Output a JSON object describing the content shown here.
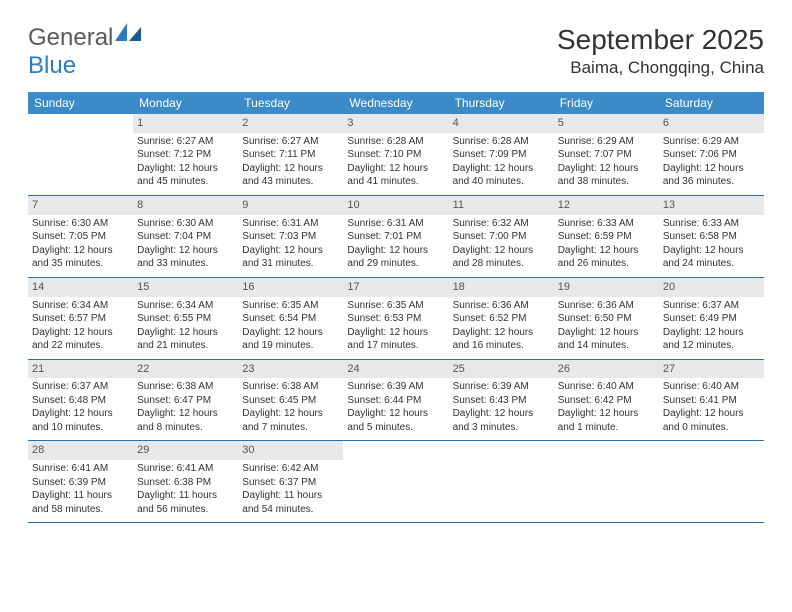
{
  "logo": {
    "text1": "General",
    "text2": "Blue"
  },
  "title": "September 2025",
  "location": "Baima, Chongqing, China",
  "colors": {
    "header_bg": "#3b8bc8",
    "header_text": "#ffffff",
    "daynum_bg": "#e8e8e8",
    "row_border": "#2d6fa8",
    "logo_gray": "#5a5a5a",
    "logo_blue": "#2d7cc0"
  },
  "day_names": [
    "Sunday",
    "Monday",
    "Tuesday",
    "Wednesday",
    "Thursday",
    "Friday",
    "Saturday"
  ],
  "weeks": [
    [
      {
        "empty": true
      },
      {
        "num": "1",
        "sunrise": "Sunrise: 6:27 AM",
        "sunset": "Sunset: 7:12 PM",
        "daylight": "Daylight: 12 hours and 45 minutes."
      },
      {
        "num": "2",
        "sunrise": "Sunrise: 6:27 AM",
        "sunset": "Sunset: 7:11 PM",
        "daylight": "Daylight: 12 hours and 43 minutes."
      },
      {
        "num": "3",
        "sunrise": "Sunrise: 6:28 AM",
        "sunset": "Sunset: 7:10 PM",
        "daylight": "Daylight: 12 hours and 41 minutes."
      },
      {
        "num": "4",
        "sunrise": "Sunrise: 6:28 AM",
        "sunset": "Sunset: 7:09 PM",
        "daylight": "Daylight: 12 hours and 40 minutes."
      },
      {
        "num": "5",
        "sunrise": "Sunrise: 6:29 AM",
        "sunset": "Sunset: 7:07 PM",
        "daylight": "Daylight: 12 hours and 38 minutes."
      },
      {
        "num": "6",
        "sunrise": "Sunrise: 6:29 AM",
        "sunset": "Sunset: 7:06 PM",
        "daylight": "Daylight: 12 hours and 36 minutes."
      }
    ],
    [
      {
        "num": "7",
        "sunrise": "Sunrise: 6:30 AM",
        "sunset": "Sunset: 7:05 PM",
        "daylight": "Daylight: 12 hours and 35 minutes."
      },
      {
        "num": "8",
        "sunrise": "Sunrise: 6:30 AM",
        "sunset": "Sunset: 7:04 PM",
        "daylight": "Daylight: 12 hours and 33 minutes."
      },
      {
        "num": "9",
        "sunrise": "Sunrise: 6:31 AM",
        "sunset": "Sunset: 7:03 PM",
        "daylight": "Daylight: 12 hours and 31 minutes."
      },
      {
        "num": "10",
        "sunrise": "Sunrise: 6:31 AM",
        "sunset": "Sunset: 7:01 PM",
        "daylight": "Daylight: 12 hours and 29 minutes."
      },
      {
        "num": "11",
        "sunrise": "Sunrise: 6:32 AM",
        "sunset": "Sunset: 7:00 PM",
        "daylight": "Daylight: 12 hours and 28 minutes."
      },
      {
        "num": "12",
        "sunrise": "Sunrise: 6:33 AM",
        "sunset": "Sunset: 6:59 PM",
        "daylight": "Daylight: 12 hours and 26 minutes."
      },
      {
        "num": "13",
        "sunrise": "Sunrise: 6:33 AM",
        "sunset": "Sunset: 6:58 PM",
        "daylight": "Daylight: 12 hours and 24 minutes."
      }
    ],
    [
      {
        "num": "14",
        "sunrise": "Sunrise: 6:34 AM",
        "sunset": "Sunset: 6:57 PM",
        "daylight": "Daylight: 12 hours and 22 minutes."
      },
      {
        "num": "15",
        "sunrise": "Sunrise: 6:34 AM",
        "sunset": "Sunset: 6:55 PM",
        "daylight": "Daylight: 12 hours and 21 minutes."
      },
      {
        "num": "16",
        "sunrise": "Sunrise: 6:35 AM",
        "sunset": "Sunset: 6:54 PM",
        "daylight": "Daylight: 12 hours and 19 minutes."
      },
      {
        "num": "17",
        "sunrise": "Sunrise: 6:35 AM",
        "sunset": "Sunset: 6:53 PM",
        "daylight": "Daylight: 12 hours and 17 minutes."
      },
      {
        "num": "18",
        "sunrise": "Sunrise: 6:36 AM",
        "sunset": "Sunset: 6:52 PM",
        "daylight": "Daylight: 12 hours and 16 minutes."
      },
      {
        "num": "19",
        "sunrise": "Sunrise: 6:36 AM",
        "sunset": "Sunset: 6:50 PM",
        "daylight": "Daylight: 12 hours and 14 minutes."
      },
      {
        "num": "20",
        "sunrise": "Sunrise: 6:37 AM",
        "sunset": "Sunset: 6:49 PM",
        "daylight": "Daylight: 12 hours and 12 minutes."
      }
    ],
    [
      {
        "num": "21",
        "sunrise": "Sunrise: 6:37 AM",
        "sunset": "Sunset: 6:48 PM",
        "daylight": "Daylight: 12 hours and 10 minutes."
      },
      {
        "num": "22",
        "sunrise": "Sunrise: 6:38 AM",
        "sunset": "Sunset: 6:47 PM",
        "daylight": "Daylight: 12 hours and 8 minutes."
      },
      {
        "num": "23",
        "sunrise": "Sunrise: 6:38 AM",
        "sunset": "Sunset: 6:45 PM",
        "daylight": "Daylight: 12 hours and 7 minutes."
      },
      {
        "num": "24",
        "sunrise": "Sunrise: 6:39 AM",
        "sunset": "Sunset: 6:44 PM",
        "daylight": "Daylight: 12 hours and 5 minutes."
      },
      {
        "num": "25",
        "sunrise": "Sunrise: 6:39 AM",
        "sunset": "Sunset: 6:43 PM",
        "daylight": "Daylight: 12 hours and 3 minutes."
      },
      {
        "num": "26",
        "sunrise": "Sunrise: 6:40 AM",
        "sunset": "Sunset: 6:42 PM",
        "daylight": "Daylight: 12 hours and 1 minute."
      },
      {
        "num": "27",
        "sunrise": "Sunrise: 6:40 AM",
        "sunset": "Sunset: 6:41 PM",
        "daylight": "Daylight: 12 hours and 0 minutes."
      }
    ],
    [
      {
        "num": "28",
        "sunrise": "Sunrise: 6:41 AM",
        "sunset": "Sunset: 6:39 PM",
        "daylight": "Daylight: 11 hours and 58 minutes."
      },
      {
        "num": "29",
        "sunrise": "Sunrise: 6:41 AM",
        "sunset": "Sunset: 6:38 PM",
        "daylight": "Daylight: 11 hours and 56 minutes."
      },
      {
        "num": "30",
        "sunrise": "Sunrise: 6:42 AM",
        "sunset": "Sunset: 6:37 PM",
        "daylight": "Daylight: 11 hours and 54 minutes."
      },
      {
        "empty": true
      },
      {
        "empty": true
      },
      {
        "empty": true
      },
      {
        "empty": true
      }
    ]
  ]
}
